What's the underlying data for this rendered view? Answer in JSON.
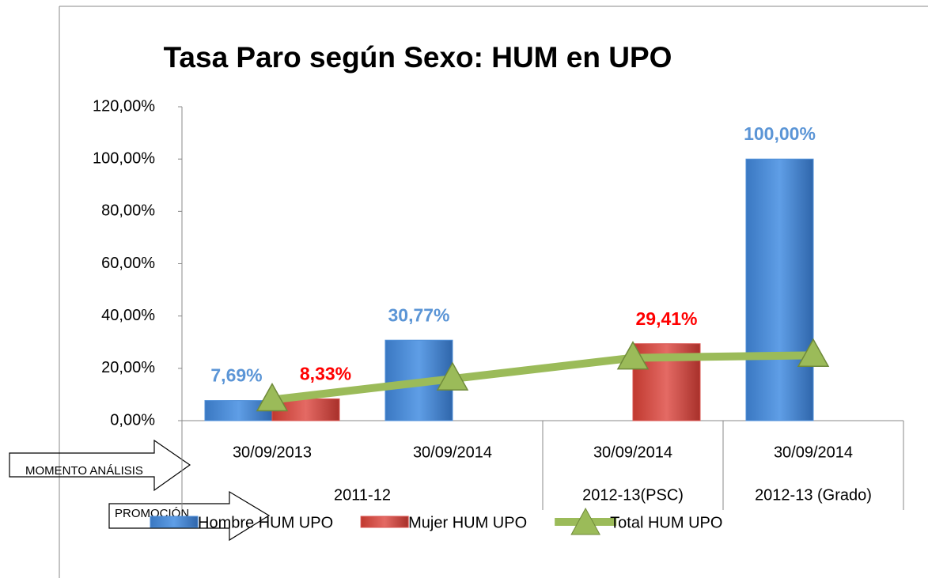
{
  "chart_data": {
    "type": "bar",
    "title": "Tasa Paro según Sexo: HUM en UPO",
    "categories": [
      "30/09/2013",
      "30/09/2014",
      "30/09/2014",
      "30/09/2014"
    ],
    "category_groups": [
      "2011-12",
      "2011-12",
      "2012-13(PSC)",
      "2012-13 (Grado)"
    ],
    "series": [
      {
        "name": "Hombre HUM UPO",
        "type": "bar",
        "color": "#4f8fd8",
        "label_color": "#5b95d6",
        "values": [
          7.69,
          30.77,
          null,
          100
        ],
        "value_labels": [
          "7,69%",
          "30,77%",
          null,
          "100,00%"
        ]
      },
      {
        "name": "Mujer HUM UPO",
        "type": "bar",
        "color": "#d9534f",
        "label_color": "#ff0000",
        "values": [
          8.33,
          null,
          29.41,
          null
        ],
        "value_labels": [
          "8,33%",
          null,
          "29,41%",
          null
        ]
      },
      {
        "name": "Total HUM UPO",
        "type": "line",
        "color": "#9bbb59",
        "values": [
          8,
          16,
          24,
          25
        ]
      }
    ],
    "ylim": [
      0,
      120
    ],
    "yticks": [
      {
        "value": 0,
        "label": "0,00%"
      },
      {
        "value": 20,
        "label": "20,00%"
      },
      {
        "value": 40,
        "label": "40,00%"
      },
      {
        "value": 60,
        "label": "60,00%"
      },
      {
        "value": 80,
        "label": "80,00%"
      },
      {
        "value": 100,
        "label": "100,00%"
      },
      {
        "value": 120,
        "label": "120,00%"
      }
    ],
    "annotations": [
      "MOMENTO ANÁLISIS",
      "PROMOCIÓN"
    ]
  }
}
